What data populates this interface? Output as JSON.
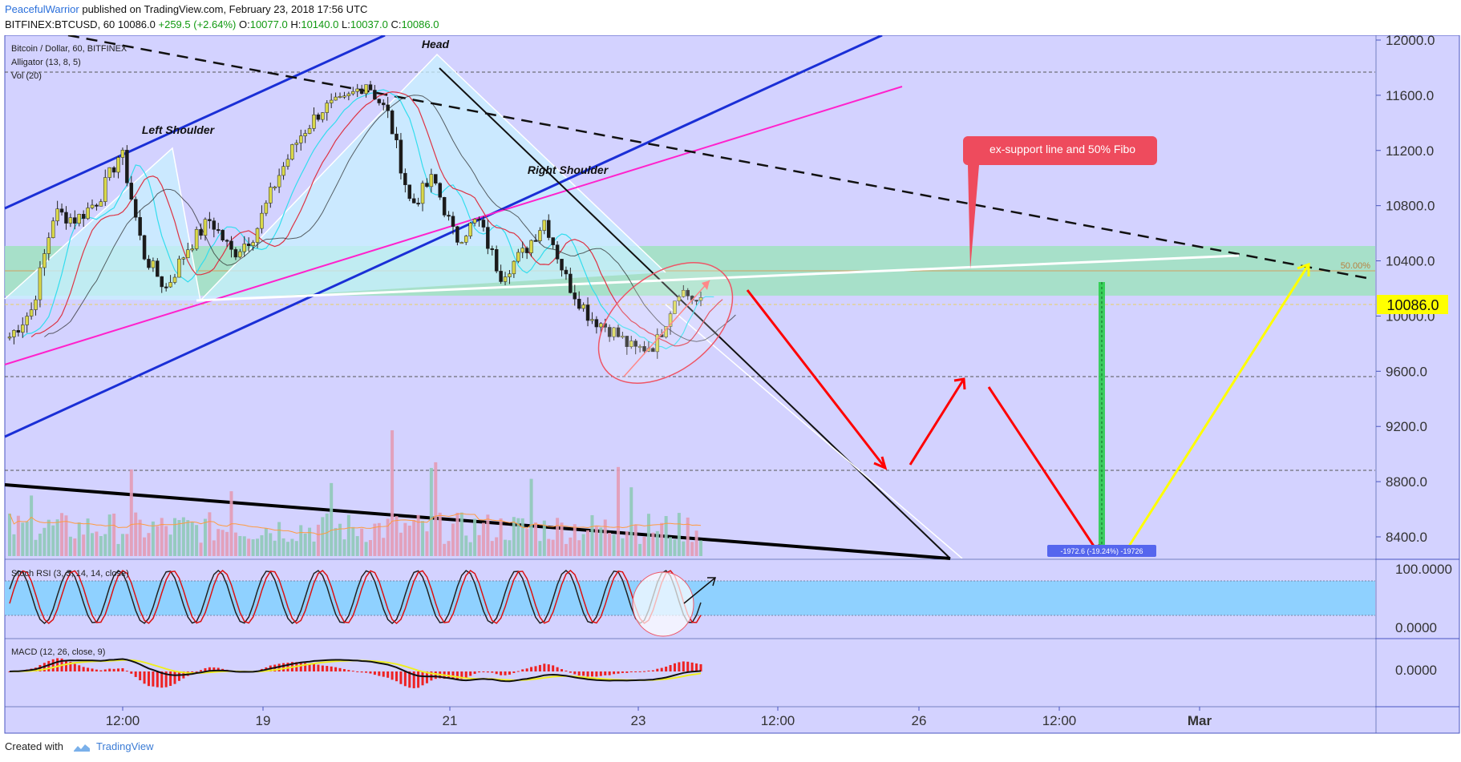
{
  "header": {
    "author": "PeacefulWarrior",
    "published": "published on TradingView.com, February 23, 2018 17:56 UTC",
    "symbol": "BITFINEX:BTCUSD, 60",
    "last": "10086.0",
    "change": "+259.5 (+2.64%)",
    "o_label": "O:",
    "o": "10077.0",
    "h_label": "H:",
    "h": "10140.0",
    "l_label": "L:",
    "l": "10037.0",
    "c_label": "C:",
    "c": "10086.0"
  },
  "legend": {
    "title": "Bitcoin / Dollar, 60, BITFINEX",
    "alligator": "Alligator (13, 8, 5)",
    "vol": "Vol (20)",
    "stoch": "Stoch RSI (3, 3, 14, 14, close)",
    "macd": "MACD (12, 26, close, 9)"
  },
  "annotations": {
    "head": "Head",
    "left_shoulder": "Left Shoulder",
    "right_shoulder": "Right Shoulder",
    "callout": "ex-support line and 50% Fibo",
    "fib": "50.00%",
    "measure": "-1972.6 (-19.24%) -19726"
  },
  "price_badge": "10086.0",
  "stoch_ticks": [
    "100.0000",
    "0.0000"
  ],
  "macd_ticks": [
    "0.0000"
  ],
  "footer": {
    "created": "Created with",
    "brand": "TradingView"
  },
  "colors": {
    "background": "#d3d2ff",
    "support_zone": "#9fe3c0",
    "stoch_band": "#8fd1ff",
    "callout": "#ee4b5d",
    "badge": "#ffff00",
    "bull": "#d9d84a",
    "bear": "#1a1a1a"
  },
  "chart_data": {
    "type": "candlestick",
    "title": "Bitcoin / Dollar, 60, BITFINEX",
    "ylim": [
      8200,
      12050
    ],
    "y_ticks": [
      "12000.0",
      "11600.0",
      "11200.0",
      "10800.0",
      "10400.0",
      "10000.0",
      "9600.0",
      "9200.0",
      "8800.0",
      "8400.0"
    ],
    "x_ticks": [
      "12:00",
      "19",
      "21",
      "23",
      "12:00",
      "26",
      "12:00",
      "Mar"
    ],
    "grid": false,
    "close_path": [
      [
        "Feb 18 03:00",
        9850
      ],
      [
        "Feb 18 10:00",
        10050
      ],
      [
        "Feb 18 16:00",
        10750
      ],
      [
        "Feb 18 22:00",
        10700
      ],
      [
        "Feb 19 00:00",
        10850
      ],
      [
        "Feb 19 04:00",
        11200
      ],
      [
        "Feb 19 07:00",
        10450
      ],
      [
        "Feb 19 10:00",
        10200
      ],
      [
        "Feb 19 14:00",
        10500
      ],
      [
        "Feb 19 20:00",
        10700
      ],
      [
        "Feb 20 02:00",
        10450
      ],
      [
        "Feb 20 06:00",
        10600
      ],
      [
        "Feb 20 14:00",
        11000
      ],
      [
        "Feb 20 20:00",
        11300
      ],
      [
        "Feb 21 02:00",
        11500
      ],
      [
        "Feb 21 06:00",
        11550
      ],
      [
        "Feb 21 08:00",
        11700
      ],
      [
        "Feb 21 10:00",
        11450
      ],
      [
        "Feb 21 14:00",
        10800
      ],
      [
        "Feb 21 18:00",
        11000
      ],
      [
        "Feb 21 22:00",
        10550
      ],
      [
        "Feb 22 02:00",
        10700
      ],
      [
        "Feb 22 06:00",
        10300
      ],
      [
        "Feb 22 10:00",
        10450
      ],
      [
        "Feb 22 14:00",
        10700
      ],
      [
        "Feb 22 18:00",
        10250
      ],
      [
        "Feb 22 22:00",
        10000
      ],
      [
        "Feb 23 02:00",
        9900
      ],
      [
        "Feb 23 06:00",
        9750
      ],
      [
        "Feb 23 10:00",
        9800
      ],
      [
        "Feb 23 14:00",
        10200
      ],
      [
        "Feb 23 17:00",
        10086
      ]
    ],
    "levels": [
      11750,
      10350,
      10100,
      9560,
      8900
    ],
    "fib_50": 10330,
    "support_zone": [
      10150,
      10450
    ],
    "projection": [
      [
        "Feb 23 18:00",
        10150
      ],
      [
        "Feb 25 03:00",
        8900
      ],
      [
        "Feb 25 12:00",
        9550
      ],
      [
        "Feb 26 12:00",
        8200
      ],
      [
        "Mar 1 06:00",
        10380
      ]
    ]
  }
}
